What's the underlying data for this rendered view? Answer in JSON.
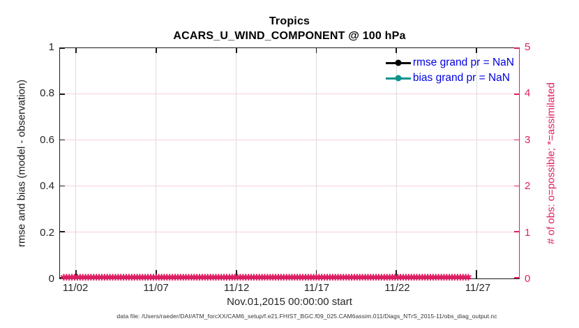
{
  "title": {
    "line1": "Tropics",
    "line2": "ACARS_U_WIND_COMPONENT @ 100 hPa"
  },
  "x_axis": {
    "label": "Nov.01,2015 00:00:00 start",
    "tick_labels": [
      "11/02",
      "11/07",
      "11/12",
      "11/17",
      "11/22",
      "11/27"
    ],
    "tick_pos_pct": [
      3.5,
      21.0,
      38.5,
      55.9,
      73.4,
      90.9
    ]
  },
  "left_y_axis": {
    "label": "rmse and bias (model - observation)",
    "tick_labels": [
      "0",
      "0.2",
      "0.4",
      "0.6",
      "0.8",
      "1"
    ],
    "range": [
      0,
      1
    ],
    "color": "#262626"
  },
  "right_y_axis": {
    "label": "# of obs: o=possible; *=assimilated",
    "tick_labels": [
      "0",
      "1",
      "2",
      "3",
      "4",
      "5"
    ],
    "range": [
      0,
      5
    ],
    "color": "#de1f64"
  },
  "legend": {
    "text_color": "#0000e0",
    "items": [
      {
        "label": "rmse grand pr = NaN",
        "color": "#000000",
        "marker": "filled-circle"
      },
      {
        "label": "bias grand pr = NaN",
        "color": "#0d948c",
        "marker": "filled-circle"
      }
    ]
  },
  "obs_band": {
    "char": "✱",
    "repeat": 150,
    "color": "#de1f64",
    "meaning": "assimilated-obs count = 0 at every time bin, drawn as dense asterisk band along y = 0"
  },
  "caption": "data file: /Users/raeder/DAI/ATM_forcXX/CAM6_setup/f.e21.FHIST_BGC.f09_025.CAM6assim.011/Diags_NTrS_2015-11/obs_diag_output.nc",
  "colors": {
    "axis_dark": "#1a1a1a",
    "crimson": "#de1f64",
    "teal": "#0d948c",
    "legend_blue": "#0000e0",
    "vgrid": "#dcdcdc",
    "hgrid": "#f5d0de"
  },
  "chart_data": {
    "type": "line",
    "title": "Tropics",
    "subtitle": "ACARS_U_WIND_COMPONENT @ 100 hPa",
    "xlabel": "Nov.01,2015 00:00:00 start",
    "x_tick_labels": [
      "11/02",
      "11/07",
      "11/12",
      "11/17",
      "11/22",
      "11/27"
    ],
    "left_ylabel": "rmse and bias (model - observation)",
    "left_ylim": [
      0,
      1
    ],
    "left_yticks": [
      0,
      0.2,
      0.4,
      0.6,
      0.8,
      1
    ],
    "right_ylabel": "# of obs: o=possible; *=assimilated",
    "right_ylim": [
      0,
      5
    ],
    "right_yticks": [
      0,
      1,
      2,
      3,
      4,
      5
    ],
    "grid": true,
    "legend_position": "top-right-inside",
    "series": [
      {
        "name": "rmse grand pr = NaN",
        "axis": "left",
        "color": "#000000",
        "marker": "filled-circle",
        "values": "all NaN — no curve plotted"
      },
      {
        "name": "bias grand pr = NaN",
        "axis": "left",
        "color": "#0d948c",
        "marker": "filled-circle",
        "values": "all NaN — no curve plotted"
      },
      {
        "name": "# of obs possible (o)",
        "axis": "right",
        "color": "#de1f64",
        "marker": "o",
        "values": "0 at every time bin Nov 01–Nov 30, 2015"
      },
      {
        "name": "# of obs assimilated (*)",
        "axis": "right",
        "color": "#de1f64",
        "marker": "*",
        "values": "0 at every time bin Nov 01–Nov 30, 2015 (dense band along y=0)"
      }
    ]
  }
}
